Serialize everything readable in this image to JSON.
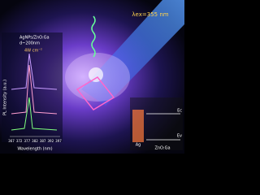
{
  "excitation": "λex=355 nm",
  "inset": {
    "sample": "AgNPs/ZnO:Ga",
    "diameter": "d~200nm",
    "power": "4W cm⁻²",
    "y_label": "PL Intensity (a.u.)",
    "x_label": "Wavelength (nm)",
    "x_ticks": [
      "367",
      "372",
      "377",
      "382",
      "387",
      "392",
      "397"
    ]
  },
  "band": {
    "ec": "Ec",
    "ev": "Ev",
    "material": "ZnO:Ga",
    "ag": "Ag"
  }
}
